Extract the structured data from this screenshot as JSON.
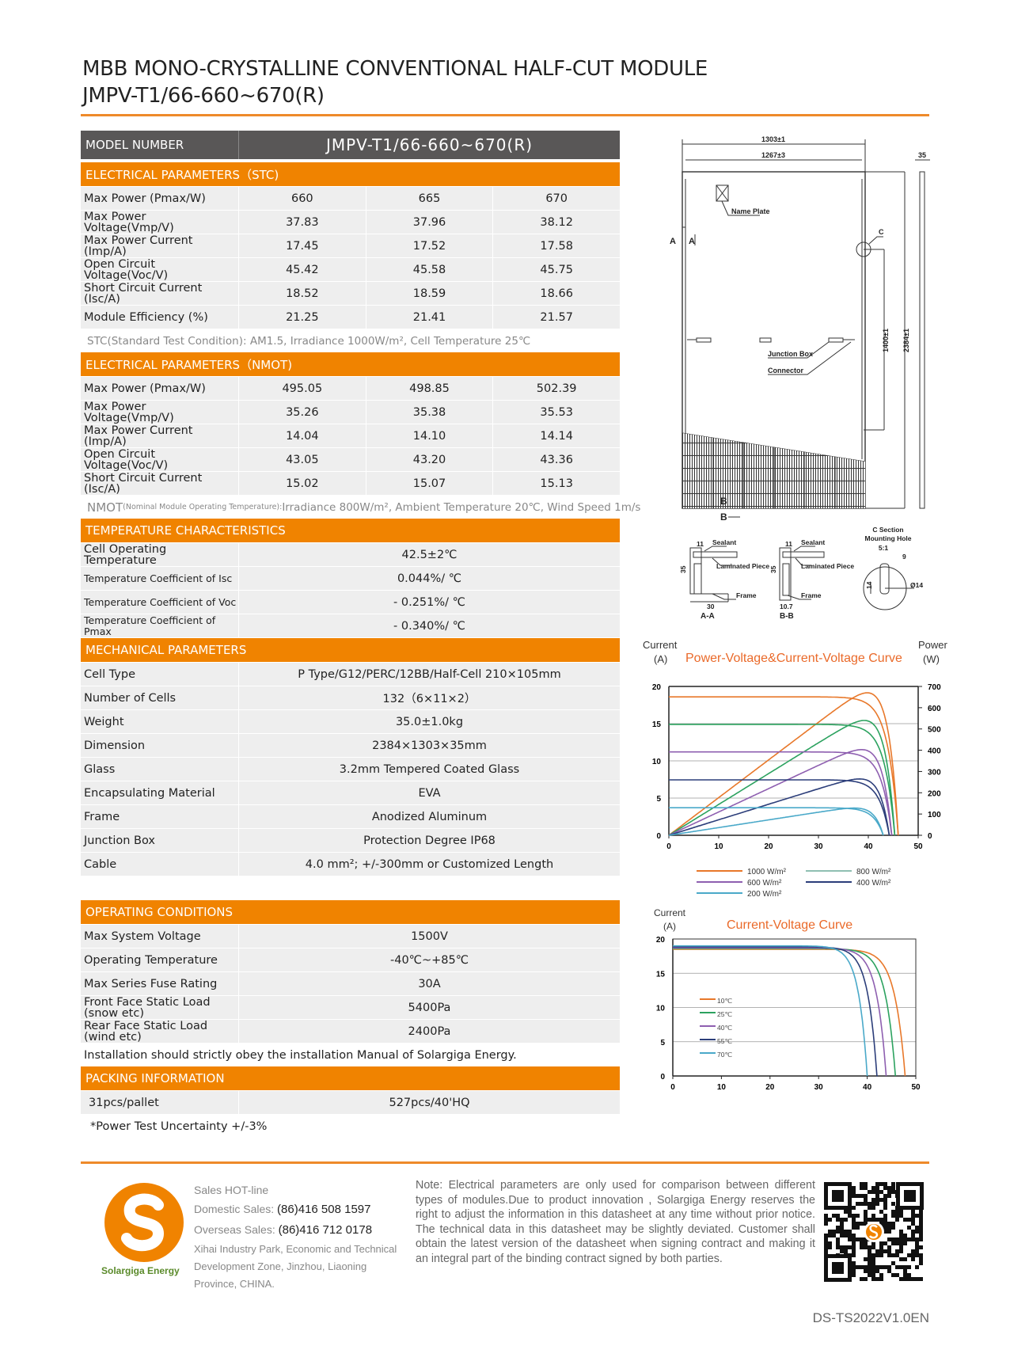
{
  "header": {
    "title_line1": "MBB MONO-CRYSTALLINE CONVENTIONAL HALF-CUT MODULE",
    "title_line2": "JMPV-T1/66-660~670(R)"
  },
  "colors": {
    "accent": "#f08300",
    "dark_header": "#595757",
    "row_bg": "#eeeeee",
    "logo_green": "#5a8a2a"
  },
  "model": {
    "label": "MODEL NUMBER",
    "value": "JMPV-T1/66-660~670(R)"
  },
  "stc": {
    "title": "ELECTRICAL PARAMETERS（STC)",
    "rows": [
      {
        "label": "Max Power (Pmax/W)",
        "values": [
          "660",
          "665",
          "670"
        ]
      },
      {
        "label": "Max Power Voltage(Vmp/V)",
        "values": [
          "37.83",
          "37.96",
          "38.12"
        ]
      },
      {
        "label": "Max Power Current (Imp/A)",
        "values": [
          "17.45",
          "17.52",
          "17.58"
        ]
      },
      {
        "label": "Open Circuit Voltage(Voc/V)",
        "values": [
          "45.42",
          "45.58",
          "45.75"
        ]
      },
      {
        "label": "Short Circuit Current (Isc/A)",
        "values": [
          "18.52",
          "18.59",
          "18.66"
        ]
      },
      {
        "label": "Module Efficiency (%)",
        "values": [
          "21.25",
          "21.41",
          "21.57"
        ]
      }
    ],
    "note": "STC(Standard Test Condition): AM1.5, Irradiance 1000W/m², Cell Temperature 25℃"
  },
  "nmot": {
    "title": "ELECTRICAL PARAMETERS（NMOT)",
    "rows": [
      {
        "label": "Max Power (Pmax/W)",
        "values": [
          "495.05",
          "498.85",
          "502.39"
        ]
      },
      {
        "label": "Max Power Voltage(Vmp/V)",
        "values": [
          "35.26",
          "35.38",
          "35.53"
        ]
      },
      {
        "label": "Max Power Current (Imp/A)",
        "values": [
          "14.04",
          "14.10",
          "14.14"
        ]
      },
      {
        "label": "Open Circuit Voltage(Voc/V)",
        "values": [
          "43.05",
          "43.20",
          "43.36"
        ]
      },
      {
        "label": "Short Circuit Current (Isc/A)",
        "values": [
          "15.02",
          "15.07",
          "15.13"
        ]
      }
    ],
    "note_prefix": "NMOT",
    "note_small": "(Nominal Module Operating Temperature):",
    "note_rest": " Irradiance 800W/m², Ambient Temperature 20℃, Wind Speed 1m/s"
  },
  "temperature": {
    "title": "TEMPERATURE CHARACTERISTICS",
    "rows": [
      {
        "label": "Cell Operating Temperature",
        "value": "42.5±2℃"
      },
      {
        "label": "Temperature Coefficient of Isc",
        "value": "0.044%/ ℃",
        "small": true
      },
      {
        "label": "Temperature Coefficient of Voc",
        "value": "- 0.251%/ ℃",
        "small": true
      },
      {
        "label": "Temperature Coefficient of Pmax",
        "value": "- 0.340%/ ℃",
        "small": true
      }
    ]
  },
  "mechanical": {
    "title": "MECHANICAL PARAMETERS",
    "rows": [
      {
        "label": "Cell Type",
        "value": "P Type/G12/PERC/12BB/Half-Cell  210×105mm"
      },
      {
        "label": "Number of Cells",
        "value": "132（6×11×2）"
      },
      {
        "label": "Weight",
        "value": "35.0±1.0kg"
      },
      {
        "label": "Dimension",
        "value": "2384×1303×35mm"
      },
      {
        "label": "Glass",
        "value": "3.2mm Tempered Coated Glass"
      },
      {
        "label": "Encapsulating Material",
        "value": "EVA"
      },
      {
        "label": "Frame",
        "value": "Anodized Aluminum"
      },
      {
        "label": "Junction Box",
        "value": "Protection Degree IP68"
      },
      {
        "label": "Cable",
        "value": "4.0 mm²; +/-300mm or Customized Length"
      }
    ]
  },
  "operating": {
    "title": "OPERATING CONDITIONS",
    "rows": [
      {
        "label": "Max System Voltage",
        "value": "1500V"
      },
      {
        "label": "Operating Temperature",
        "value": "-40℃~+85℃"
      },
      {
        "label": "Max Series Fuse Rating",
        "value": "30A"
      },
      {
        "label": "Front Face Static Load (snow etc)",
        "value": "5400Pa"
      },
      {
        "label": "Rear Face Static Load (wind etc)",
        "value": "2400Pa"
      }
    ],
    "note": "Installation should strictly obey the installation Manual of Solargiga Energy."
  },
  "packing": {
    "title": "PACKING INFORMATION",
    "rows": [
      {
        "label": "31pcs/pallet",
        "value": "527pcs/40'HQ"
      }
    ],
    "note": "*Power Test Uncertainty  +/-3%"
  },
  "drawing": {
    "width": "1303±1",
    "inner_width": "1267±3",
    "thickness": "35",
    "height": "2384±1",
    "hole_pitch": "1400±1",
    "name_plate": "Name Plate",
    "junction_box": "Junction Box",
    "connector": "Connector",
    "c_label": "C",
    "a_label": "A",
    "b_label": "B",
    "sections": {
      "sealant": "Sealant",
      "laminated": "Laminated Piece",
      "frame": "Frame",
      "aa": "A-A",
      "bb": "B-B",
      "aa_h": "35",
      "aa_w": "30",
      "aa_top": "11",
      "bb_h": "35",
      "bb_w": "10.7",
      "bb_top": "11",
      "c_title1": "C Section",
      "c_title2": "Mounting Hole",
      "c_scale": "5:1",
      "c_9": "9",
      "c_14": "14",
      "c_phi": "Ø14"
    }
  },
  "chart_data": [
    {
      "type": "line",
      "title": "Power-Voltage&Current-Voltage Curve",
      "ylabel": "Current",
      "ylabel_unit": "(A)",
      "y2label": "Power",
      "y2label_unit": "(W)",
      "xlim": [
        0,
        50
      ],
      "ylim": [
        0,
        20
      ],
      "y2lim": [
        0,
        700
      ],
      "xticks": [
        0,
        10,
        20,
        30,
        40,
        50
      ],
      "yticks": [
        0,
        5,
        10,
        15,
        20
      ],
      "y2ticks": [
        0,
        100,
        200,
        300,
        400,
        500,
        600,
        700
      ],
      "grid": "horizontal",
      "legend": "bottom",
      "series": [
        {
          "name": "1000 W/m²",
          "color": "#e8782a",
          "isc": 18.6,
          "voc": 46.0,
          "pmax": 670
        },
        {
          "name": "800 W/m²",
          "color": "#2ca25f",
          "legend_color": "#8fbfb2",
          "isc": 14.9,
          "voc": 45.3,
          "pmax": 540
        },
        {
          "name": "600 W/m²",
          "color": "#8e5fb0",
          "isc": 11.2,
          "voc": 44.7,
          "pmax": 403
        },
        {
          "name": "400 W/m²",
          "color": "#2c3e7a",
          "isc": 7.45,
          "voc": 44.2,
          "pmax": 265
        },
        {
          "name": "200 W/m²",
          "color": "#4aa9c9",
          "isc": 3.7,
          "voc": 43.0,
          "pmax": 128
        }
      ]
    },
    {
      "type": "line",
      "title": "Current-Voltage Curve",
      "ylabel": "Current",
      "ylabel_unit": "(A)",
      "xlim": [
        0,
        50
      ],
      "ylim": [
        0,
        20
      ],
      "xticks": [
        0,
        10,
        20,
        30,
        40,
        50
      ],
      "yticks": [
        0,
        5,
        10,
        15,
        20
      ],
      "grid": "horizontal",
      "legend": "inside-left",
      "series": [
        {
          "name": "10℃",
          "color": "#e8782a",
          "isc": 18.5,
          "voc": 47.8
        },
        {
          "name": "25℃",
          "color": "#2ca25f",
          "isc": 18.6,
          "voc": 45.8
        },
        {
          "name": "40℃",
          "color": "#8e5fb0",
          "isc": 18.7,
          "voc": 43.9
        },
        {
          "name": "55℃",
          "color": "#2c3e7a",
          "isc": 18.85,
          "voc": 42.0
        },
        {
          "name": "70℃",
          "color": "#4aa9c9",
          "isc": 19.0,
          "voc": 40.0
        }
      ]
    }
  ],
  "footer": {
    "logo_text": "Solargiga Energy",
    "logo_letter": "S",
    "hotline": "Sales HOT-line",
    "domestic_label": "Domestic Sales:",
    "domestic": "(86)416 508 1597",
    "overseas_label": "Overseas Sales:",
    "overseas": "(86)416 712 0178",
    "address1": "Xihai Industry Park, Economic and Technical",
    "address2": "Development Zone, Jinzhou, Liaoning",
    "address3": "Province, CHINA.",
    "note": "Note:  Electrical parameters are only used for comparison between different types of modules.Due to product innovation , Solargiga Energy reserves the right to adjust the information in this datasheet at any time without prior notice. The technical data in this datasheet may be slightly deviated. Customer shall obtain the latest version of the datasheet when signing  contract  and  making it an integral part of the binding contract signed by both parties.",
    "doc_code": "DS-TS2022V1.0EN",
    "qr_icon": "qr-code-icon"
  }
}
